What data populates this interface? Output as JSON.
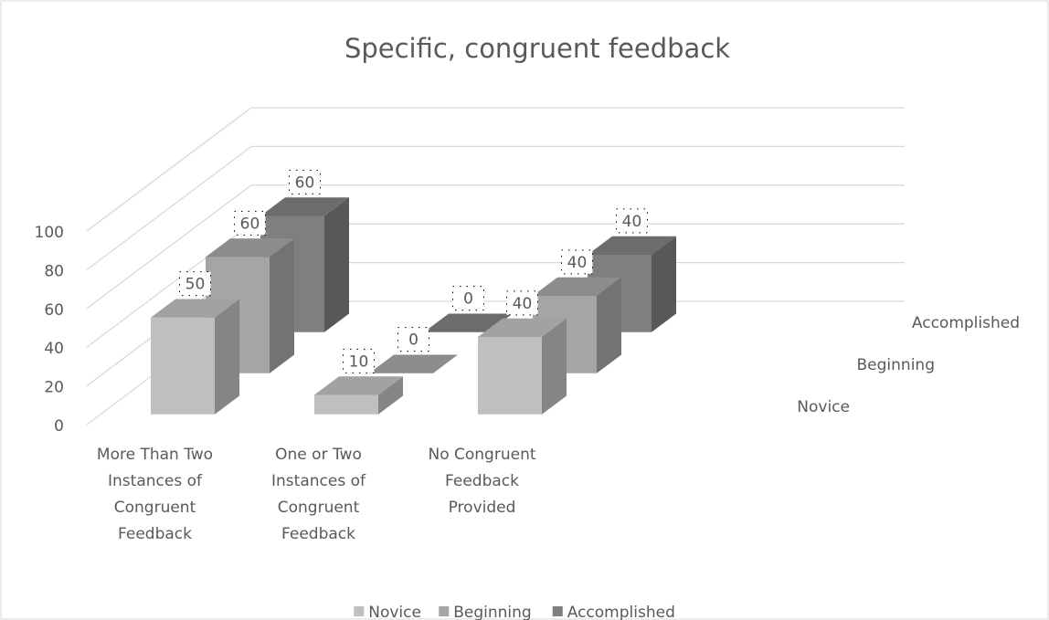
{
  "chart_data": {
    "type": "bar3d",
    "title": "Specific, congruent feedback",
    "categories": [
      "More Than Two Instances of Congruent Feedback",
      "One or Two Instances of Congruent Feedback",
      "No Congruent Feedback Provided"
    ],
    "series": [
      {
        "name": "Novice",
        "color": "#bfbfbf",
        "values": [
          50,
          10,
          40
        ]
      },
      {
        "name": "Beginning",
        "color": "#a5a5a5",
        "values": [
          60,
          0,
          40
        ]
      },
      {
        "name": "Accomplished",
        "color": "#7f7f7f",
        "values": [
          60,
          0,
          40
        ]
      }
    ],
    "ylim": [
      0,
      100
    ],
    "yticks": [
      0,
      20,
      40,
      60,
      80,
      100
    ],
    "grid": true,
    "legend": "bottom"
  }
}
